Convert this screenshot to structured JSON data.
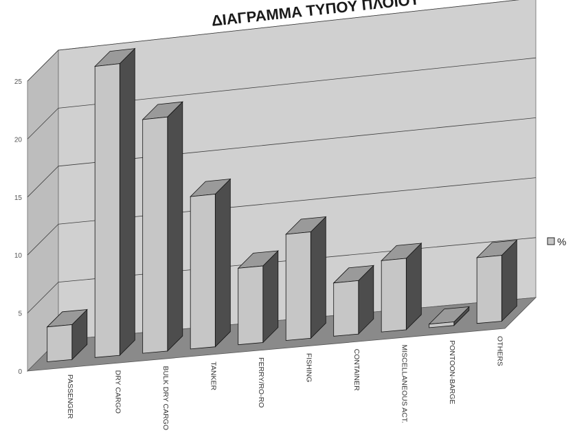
{
  "chart_data": {
    "type": "bar",
    "title": "ΔΙΑΓΡΑΜΜΑ ΤΥΠΟΥ ΠΛΟΙΟΥ",
    "categories": [
      "PASSENGER",
      "DRY CARGO",
      "BULK DRY CARGO",
      "TANKER",
      "FERRY/RO-RO",
      "FISHING",
      "CONTAINER",
      "MISCELLANEOUS ACT.",
      "PONTOON-BARGE",
      "OTHERS"
    ],
    "series": [
      {
        "name": "%",
        "values": [
          3,
          25,
          20,
          13,
          6.5,
          9,
          4.5,
          6,
          0.3,
          5.5
        ]
      }
    ],
    "yticks": [
      0,
      5,
      10,
      15,
      20,
      25
    ],
    "ylim": [
      0,
      25
    ],
    "grid": true,
    "legend": "right",
    "three_d": true,
    "colors": {
      "bar_front": "#c6c6c6",
      "bar_side": "#4d4d4d",
      "bar_top": "#9a9a9a",
      "back_wall": "#d0d0d0",
      "side_wall": "#bdbdbd",
      "floor": "#8a8a8a"
    }
  }
}
